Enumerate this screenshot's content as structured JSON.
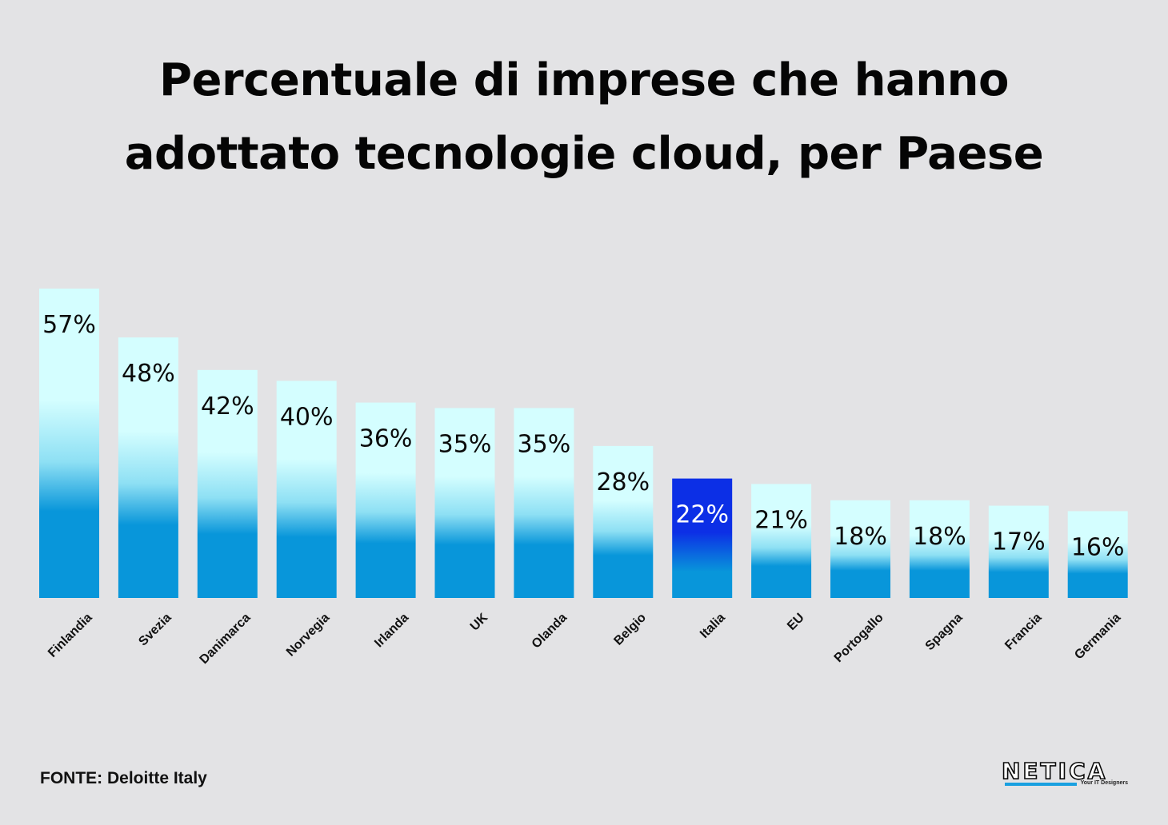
{
  "title_lines": [
    "Percentuale di imprese che hanno",
    "adottato tecnologie cloud, per Paese"
  ],
  "source": "FONTE: Deloitte Italy",
  "logo": {
    "name": "NETICA",
    "tagline": "Your IT Designers"
  },
  "colors": {
    "background": "#e3e3e5",
    "bar_top": "#d4feff",
    "bar_mid": "#8ee0f4",
    "bar_bottom": "#0896da",
    "highlight_top": "#0c2fe6",
    "highlight_bottom": "#0896da",
    "highlight_label": "#ffffff",
    "label": "#0a0a0a",
    "logo_accent": "#1aa0e0"
  },
  "chart_data": {
    "type": "bar",
    "title": "Percentuale di imprese che hanno adottato tecnologie cloud, per Paese",
    "categories": [
      "Finlandia",
      "Svezia",
      "Danimarca",
      "Norvegia",
      "Irlanda",
      "UK",
      "Olanda",
      "Belgio",
      "Italia",
      "EU",
      "Portogallo",
      "Spagna",
      "Francia",
      "Germania"
    ],
    "values": [
      57,
      48,
      42,
      40,
      36,
      35,
      35,
      28,
      22,
      21,
      18,
      18,
      17,
      16
    ],
    "value_labels": [
      "57%",
      "48%",
      "42%",
      "40%",
      "36%",
      "35%",
      "35%",
      "28%",
      "22%",
      "21%",
      "18%",
      "18%",
      "17%",
      "16%"
    ],
    "highlight": "Italia",
    "unit": "%",
    "ylim": [
      0,
      57
    ],
    "grid": false,
    "legend": "none"
  }
}
